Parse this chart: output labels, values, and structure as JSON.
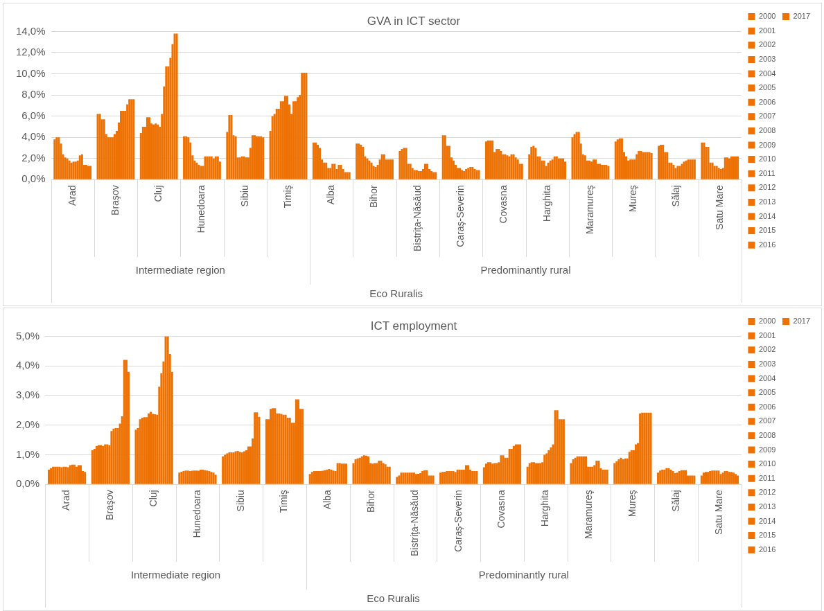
{
  "chart_data": [
    {
      "type": "bar",
      "title": "GVA in ICT sector",
      "categories": [
        "Arad",
        "Braşov",
        "Cluj",
        "Hunedoara",
        "Sibiu",
        "Timiş",
        "Alba",
        "Bihor",
        "Bistriţa-Năsăud",
        "Caraş-Severin",
        "Covasna",
        "Harghita",
        "Maramureş",
        "Mureş",
        "Sălaj",
        "Satu Mare"
      ],
      "annotations": [
        "Intermediate region",
        "Predominantly rural",
        "Eco Ruralis"
      ],
      "ylim": [
        0,
        14
      ],
      "yticks": [
        {
          "value": 0,
          "label": "0,0%"
        },
        {
          "value": 2,
          "label": "2,0%"
        },
        {
          "value": 4,
          "label": "4,0%"
        },
        {
          "value": 6,
          "label": "6,0%"
        },
        {
          "value": 8,
          "label": "8,0%"
        },
        {
          "value": 10,
          "label": "10,0%"
        },
        {
          "value": 12,
          "label": "12,0%"
        },
        {
          "value": 14,
          "label": "14,0%"
        }
      ],
      "grid": "y",
      "legend": "right",
      "series": [
        {
          "name": "2000",
          "color": "#ee7203",
          "values": [
            3.8,
            6.2,
            4.4,
            4.1,
            4.5,
            4.6,
            3.5,
            3.4,
            2.7,
            4.2,
            3.6,
            2.4,
            4.0,
            3.6,
            3.2,
            3.5
          ]
        },
        {
          "name": "2001",
          "color": "#ee7203",
          "values": [
            4.0,
            6.2,
            5.0,
            4.1,
            6.1,
            6.0,
            3.5,
            3.4,
            2.9,
            4.2,
            3.7,
            3.1,
            4.3,
            3.8,
            3.3,
            3.5
          ]
        },
        {
          "name": "2002",
          "color": "#ee7203",
          "values": [
            4.0,
            5.7,
            5.0,
            4.0,
            6.1,
            6.2,
            3.3,
            3.3,
            3.0,
            3.2,
            3.7,
            3.2,
            4.5,
            3.9,
            3.3,
            3.1
          ]
        },
        {
          "name": "2003",
          "color": "#ee7203",
          "values": [
            3.4,
            5.7,
            5.9,
            3.5,
            4.2,
            6.7,
            3.0,
            3.1,
            3.0,
            3.2,
            3.7,
            3.0,
            4.5,
            3.9,
            2.6,
            3.1
          ]
        },
        {
          "name": "2004",
          "color": "#ee7203",
          "values": [
            2.4,
            4.3,
            5.9,
            2.3,
            4.1,
            6.7,
            1.9,
            2.2,
            1.5,
            2.1,
            2.6,
            2.2,
            3.4,
            2.6,
            2.6,
            1.6
          ]
        },
        {
          "name": "2005",
          "color": "#ee7203",
          "values": [
            2.1,
            4.0,
            5.3,
            1.8,
            2.1,
            7.4,
            1.6,
            2.0,
            1.5,
            1.8,
            2.9,
            2.2,
            2.4,
            2.2,
            1.6,
            1.6
          ]
        },
        {
          "name": "2006",
          "color": "#ee7203",
          "values": [
            2.0,
            4.0,
            5.2,
            1.6,
            2.1,
            7.4,
            1.6,
            1.8,
            1.1,
            1.4,
            2.9,
            1.8,
            2.3,
            1.8,
            1.6,
            1.3
          ]
        },
        {
          "name": "2007",
          "color": "#ee7203",
          "values": [
            1.8,
            4.0,
            5.3,
            1.4,
            2.2,
            7.9,
            1.1,
            1.6,
            0.9,
            1.1,
            2.7,
            1.8,
            1.8,
            1.9,
            1.4,
            1.3
          ]
        },
        {
          "name": "2008",
          "color": "#ee7203",
          "values": [
            1.6,
            4.3,
            5.2,
            1.3,
            2.2,
            7.9,
            1.1,
            1.3,
            0.9,
            1.1,
            2.4,
            1.3,
            1.8,
            1.9,
            1.1,
            1.1
          ]
        },
        {
          "name": "2009",
          "color": "#ee7203",
          "values": [
            1.7,
            4.6,
            5.0,
            1.3,
            2.1,
            7.1,
            1.5,
            1.2,
            0.8,
            0.9,
            2.4,
            1.6,
            1.7,
            1.9,
            1.3,
            1.0
          ]
        },
        {
          "name": "2010",
          "color": "#ee7203",
          "values": [
            1.7,
            5.4,
            6.2,
            2.2,
            2.1,
            6.2,
            1.5,
            1.4,
            0.8,
            0.8,
            2.3,
            1.8,
            1.9,
            2.4,
            1.3,
            1.1
          ]
        },
        {
          "name": "2011",
          "color": "#ee7203",
          "values": [
            1.8,
            6.5,
            8.8,
            2.2,
            3.0,
            7.4,
            1.0,
            1.9,
            1.0,
            1.0,
            2.2,
            1.9,
            1.9,
            2.7,
            1.5,
            2.1
          ]
        },
        {
          "name": "2012",
          "color": "#ee7203",
          "values": [
            2.3,
            6.5,
            10.7,
            2.2,
            4.2,
            7.4,
            1.4,
            2.4,
            1.5,
            1.1,
            2.4,
            2.2,
            1.5,
            2.7,
            1.7,
            2.1
          ]
        },
        {
          "name": "2013",
          "color": "#ee7203",
          "values": [
            2.4,
            6.5,
            10.7,
            2.2,
            4.2,
            7.8,
            1.4,
            2.4,
            1.5,
            1.2,
            2.4,
            2.2,
            1.5,
            2.6,
            1.8,
            2.0
          ]
        },
        {
          "name": "2014",
          "color": "#ee7203",
          "values": [
            1.4,
            7.1,
            11.5,
            2.0,
            4.1,
            8.0,
            1.0,
            1.9,
            1.0,
            1.2,
            2.1,
            2.0,
            1.4,
            2.6,
            1.9,
            2.2
          ]
        },
        {
          "name": "2015",
          "color": "#ee7203",
          "values": [
            1.4,
            7.6,
            12.8,
            2.2,
            4.1,
            10.1,
            0.7,
            1.9,
            0.8,
            1.0,
            1.9,
            2.0,
            1.4,
            2.6,
            1.9,
            2.2
          ]
        },
        {
          "name": "2016",
          "color": "#ee7203",
          "values": [
            1.3,
            7.6,
            13.8,
            2.2,
            4.1,
            10.1,
            0.7,
            1.9,
            0.7,
            0.9,
            1.5,
            2.0,
            1.4,
            2.6,
            1.9,
            2.2
          ]
        },
        {
          "name": "2017",
          "color": "#ee7203",
          "values": [
            1.3,
            7.6,
            13.8,
            1.7,
            4.0,
            10.1,
            0.7,
            1.9,
            0.7,
            0.9,
            1.5,
            1.7,
            1.3,
            2.5,
            1.9,
            2.2
          ]
        }
      ]
    },
    {
      "type": "bar",
      "title": "ICT employment",
      "categories": [
        "Arad",
        "Braşov",
        "Cluj",
        "Hunedoara",
        "Sibiu",
        "Timiş",
        "Alba",
        "Bihor",
        "Bistriţa-Năsăud",
        "Caraş-Severin",
        "Covasna",
        "Harghita",
        "Maramureş",
        "Mureş",
        "Sălaj",
        "Satu Mare"
      ],
      "annotations": [
        "Intermediate region",
        "Predominantly rural",
        "Eco Ruralis"
      ],
      "ylim": [
        0,
        5
      ],
      "yticks": [
        {
          "value": 0,
          "label": "0,0%"
        },
        {
          "value": 1,
          "label": "1,0%"
        },
        {
          "value": 2,
          "label": "2,0%"
        },
        {
          "value": 3,
          "label": "3,0%"
        },
        {
          "value": 4,
          "label": "4,0%"
        },
        {
          "value": 5,
          "label": "5,0%"
        }
      ],
      "grid": "y",
      "legend": "right",
      "series": [
        {
          "name": "2000",
          "color": "#ee7203",
          "values": [
            0.5,
            1.15,
            1.85,
            0.4,
            0.95,
            2.2,
            0.35,
            0.72,
            0.25,
            0.4,
            0.58,
            0.6,
            0.72,
            0.72,
            0.4,
            0.3
          ]
        },
        {
          "name": "2001",
          "color": "#ee7203",
          "values": [
            0.55,
            1.2,
            1.9,
            0.43,
            1.0,
            2.2,
            0.42,
            0.85,
            0.3,
            0.42,
            0.7,
            0.72,
            0.85,
            0.78,
            0.47,
            0.4
          ]
        },
        {
          "name": "2002",
          "color": "#ee7203",
          "values": [
            0.6,
            1.3,
            2.2,
            0.45,
            1.05,
            2.55,
            0.45,
            0.88,
            0.4,
            0.43,
            0.75,
            0.75,
            0.9,
            0.85,
            0.5,
            0.42
          ]
        },
        {
          "name": "2003",
          "color": "#ee7203",
          "values": [
            0.6,
            1.33,
            2.25,
            0.47,
            1.08,
            2.57,
            0.45,
            0.9,
            0.4,
            0.45,
            0.75,
            0.75,
            0.95,
            0.9,
            0.5,
            0.42
          ]
        },
        {
          "name": "2004",
          "color": "#ee7203",
          "values": [
            0.6,
            1.33,
            2.27,
            0.47,
            1.08,
            2.57,
            0.45,
            0.95,
            0.4,
            0.45,
            0.7,
            0.72,
            0.95,
            0.85,
            0.55,
            0.45
          ]
        },
        {
          "name": "2005",
          "color": "#ee7203",
          "values": [
            0.6,
            1.3,
            2.27,
            0.45,
            1.08,
            2.4,
            0.45,
            0.98,
            0.4,
            0.45,
            0.72,
            0.72,
            0.95,
            0.88,
            0.55,
            0.47
          ]
        },
        {
          "name": "2006",
          "color": "#ee7203",
          "values": [
            0.58,
            1.35,
            2.4,
            0.46,
            1.12,
            2.4,
            0.46,
            0.97,
            0.4,
            0.45,
            0.72,
            0.72,
            0.95,
            0.88,
            0.5,
            0.47
          ]
        },
        {
          "name": "2007",
          "color": "#ee7203",
          "values": [
            0.6,
            1.35,
            2.45,
            0.47,
            1.13,
            2.38,
            0.48,
            0.95,
            0.4,
            0.42,
            0.75,
            0.75,
            0.95,
            1.1,
            0.45,
            0.47
          ]
        },
        {
          "name": "2008",
          "color": "#ee7203",
          "values": [
            0.6,
            1.33,
            2.38,
            0.47,
            1.1,
            2.35,
            0.5,
            0.72,
            0.4,
            0.5,
            0.98,
            1.0,
            0.6,
            1.15,
            0.38,
            0.47
          ]
        },
        {
          "name": "2009",
          "color": "#ee7203",
          "values": [
            0.58,
            1.8,
            2.37,
            0.46,
            1.08,
            2.35,
            0.52,
            0.7,
            0.35,
            0.5,
            0.98,
            1.05,
            0.6,
            1.15,
            0.4,
            0.35
          ]
        },
        {
          "name": "2010",
          "color": "#ee7203",
          "values": [
            0.65,
            1.88,
            2.35,
            0.5,
            1.12,
            2.25,
            0.5,
            0.72,
            0.36,
            0.5,
            0.9,
            1.15,
            0.6,
            1.35,
            0.45,
            0.4
          ]
        },
        {
          "name": "2011",
          "color": "#ee7203",
          "values": [
            0.67,
            1.9,
            3.3,
            0.5,
            1.15,
            2.25,
            0.47,
            0.72,
            0.38,
            0.5,
            0.9,
            1.25,
            0.65,
            1.4,
            0.48,
            0.45
          ]
        },
        {
          "name": "2012",
          "color": "#ee7203",
          "values": [
            0.67,
            1.9,
            3.75,
            0.48,
            1.28,
            2.08,
            0.45,
            0.8,
            0.45,
            0.65,
            1.2,
            1.35,
            0.8,
            2.4,
            0.48,
            0.45
          ]
        },
        {
          "name": "2013",
          "color": "#ee7203",
          "values": [
            0.6,
            2.05,
            4.15,
            0.47,
            1.28,
            2.08,
            0.72,
            0.8,
            0.48,
            0.65,
            1.2,
            2.5,
            0.8,
            2.42,
            0.48,
            0.42
          ]
        },
        {
          "name": "2014",
          "color": "#ee7203",
          "values": [
            0.65,
            2.3,
            5.0,
            0.45,
            1.55,
            2.87,
            0.72,
            0.72,
            0.48,
            0.5,
            1.3,
            2.5,
            0.55,
            2.42,
            0.3,
            0.42
          ]
        },
        {
          "name": "2015",
          "color": "#ee7203",
          "values": [
            0.65,
            4.2,
            5.0,
            0.42,
            2.43,
            2.87,
            0.7,
            0.68,
            0.3,
            0.45,
            1.35,
            2.2,
            0.5,
            2.42,
            0.3,
            0.4
          ]
        },
        {
          "name": "2016",
          "color": "#ee7203",
          "values": [
            0.45,
            4.2,
            4.4,
            0.4,
            2.43,
            2.55,
            0.7,
            0.6,
            0.3,
            0.45,
            1.35,
            2.2,
            0.5,
            2.42,
            0.3,
            0.35
          ]
        },
        {
          "name": "2017",
          "color": "#ee7203",
          "values": [
            0.42,
            3.8,
            3.8,
            0.33,
            2.28,
            2.55,
            0.7,
            0.6,
            0.3,
            0.45,
            1.35,
            2.2,
            0.5,
            2.42,
            0.3,
            0.3
          ]
        }
      ]
    }
  ]
}
